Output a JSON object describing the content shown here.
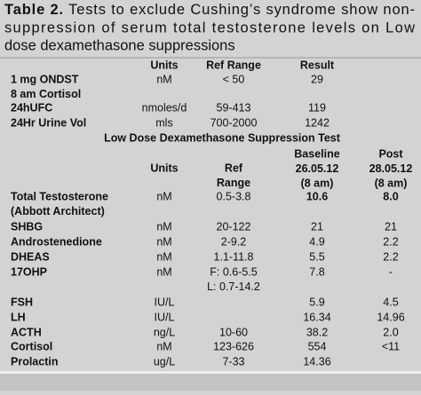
{
  "title": {
    "label": "Table 2.",
    "lines": [
      "Tests to exclude Cushing’s syndrome show non-",
      "suppression of serum total testosterone levels on Low",
      "dose  dexamethasone suppressions"
    ]
  },
  "table1": {
    "header": [
      "Units",
      "Ref Range",
      "Result"
    ],
    "rows": [
      [
        [
          "1 mg ONDST",
          "8 am Cortisol"
        ],
        "nM",
        "< 50",
        "29"
      ],
      [
        "24hUFC",
        "nmoles/d",
        "59-413",
        "119"
      ],
      [
        "24Hr Urine Vol",
        "mls",
        "700-2000",
        "1242"
      ]
    ]
  },
  "section": "Low Dose Dexamethasone Suppression Test",
  "table2": {
    "header": [
      "Units",
      [
        "Ref",
        "Range"
      ],
      [
        "Baseline",
        "26.05.12",
        "(8 am)"
      ],
      [
        "Post",
        "28.05.12",
        "(8 am)"
      ]
    ],
    "rows": [
      [
        [
          "Total Testosterone",
          "(Abbott Architect)"
        ],
        "nM",
        "0.5-3.8",
        "10.6",
        "8.0"
      ],
      [
        "SHBG",
        "nM",
        "20-122",
        "21",
        "21"
      ],
      [
        "Androstenedione",
        "nM",
        "2-9.2",
        "4.9",
        "2.2"
      ],
      [
        "DHEAS",
        "nM",
        "1.1-11.8",
        "5.5",
        "2.2"
      ],
      [
        "17OHP",
        "nM",
        [
          "F: 0.6-5.5",
          "L: 0.7-14.2"
        ],
        "7.8",
        "-"
      ],
      [
        "FSH",
        "IU/L",
        null,
        "5.9",
        "4.5"
      ],
      [
        "LH",
        "IU/L",
        null,
        "16.34",
        "14.96"
      ],
      [
        "ACTH",
        "ng/L",
        "10-60",
        "38.2",
        "2.0"
      ],
      [
        "Cortisol",
        "nM",
        "123-626",
        "554",
        "<11"
      ],
      [
        "Prolactin",
        "ug/L",
        "7-33",
        "14.36",
        null
      ]
    ]
  }
}
